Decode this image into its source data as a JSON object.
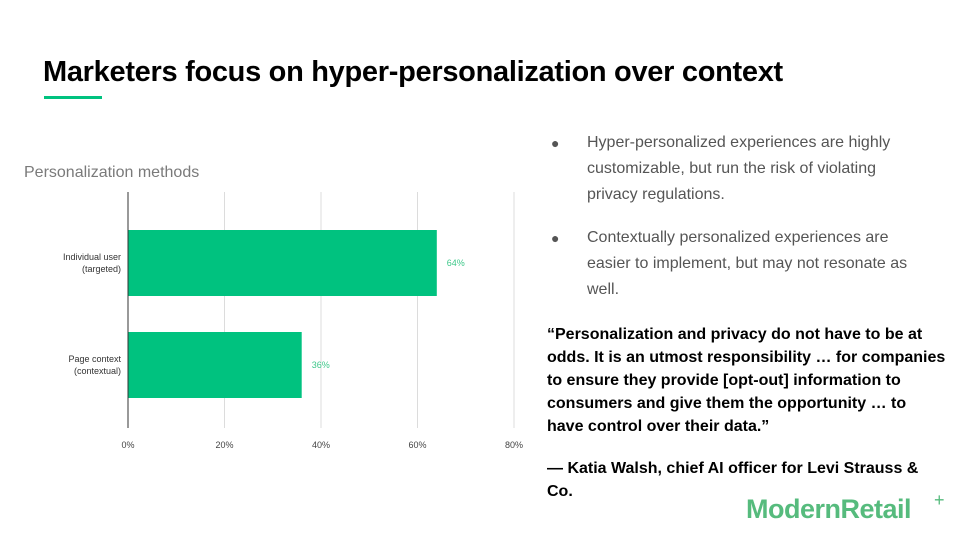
{
  "slide": {
    "title": "Marketers focus on hyper-personalization over context"
  },
  "colors": {
    "accent": "#00c27f",
    "data_label": "#3ec88a",
    "logo": "#56bb7d"
  },
  "chart_data": {
    "type": "bar",
    "orientation": "horizontal",
    "title": "Personalization methods",
    "categories": [
      [
        "Individual user",
        "(targeted)"
      ],
      [
        "Page context",
        "(contextual)"
      ]
    ],
    "values": [
      64,
      36
    ],
    "data_labels": [
      "64%",
      "36%"
    ],
    "x_ticks": [
      "0%",
      "20%",
      "40%",
      "60%",
      "80%"
    ],
    "xlim": [
      0,
      80
    ],
    "grid": true,
    "legend": "none"
  },
  "bullets": [
    {
      "bullet": "●",
      "text": "Hyper-personalized experiences are highly customizable, but run the risk of violating privacy regulations."
    },
    {
      "bullet": "●",
      "text": "Contextually personalized experiences are easier to implement, but may not resonate as well."
    }
  ],
  "quote": {
    "text": "“Personalization and privacy do not have to be at odds. It is an utmost responsibility … for companies to ensure they provide [opt-out] information to consumers and give them the opportunity … to have control over their data.”",
    "attribution": "— Katia Walsh, chief AI officer for Levi Strauss & Co."
  },
  "logo": {
    "text": "ModernRetail",
    "plus": "+",
    "icon": "plus-icon"
  }
}
